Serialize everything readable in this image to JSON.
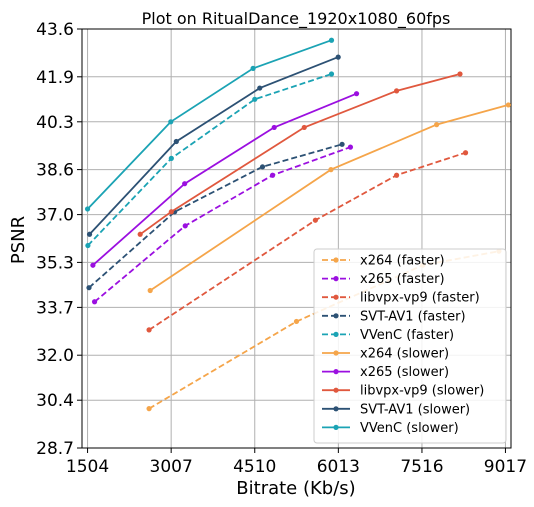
{
  "chart_data": {
    "type": "line",
    "title": "Plot on RitualDance_1920x1080_60fps",
    "xlabel": "Bitrate (Kb/s)",
    "ylabel": "PSNR",
    "xlim": [
      1404,
      9117
    ],
    "ylim": [
      28.7,
      43.6
    ],
    "xticks": [
      1504,
      3007,
      4510,
      6013,
      7516,
      9017
    ],
    "xtick_labels": [
      "1504",
      "3007",
      "4510",
      "6013",
      "7516",
      "9017"
    ],
    "yticks": [
      28.7,
      30.4,
      32.0,
      33.7,
      35.3,
      37.0,
      38.6,
      40.3,
      41.9,
      43.6
    ],
    "ytick_labels": [
      "28.7",
      "30.4",
      "32.0",
      "33.7",
      "35.3",
      "37.0",
      "38.6",
      "40.3",
      "41.9",
      "43.6"
    ],
    "grid": true,
    "legend_position": "lower-right",
    "series": [
      {
        "name": "x264 (faster)",
        "color": "#f5a54a",
        "dash": true,
        "x": [
          2610,
          5260,
          7530,
          8900
        ],
        "y": [
          30.1,
          33.2,
          35.2,
          35.7
        ]
      },
      {
        "name": "x265 (faster)",
        "color": "#9b0fe0",
        "dash": true,
        "x": [
          1630,
          3260,
          4830,
          6230
        ],
        "y": [
          33.9,
          36.6,
          38.4,
          39.4
        ]
      },
      {
        "name": "libvpx-vp9 (faster)",
        "color": "#e0583e",
        "dash": true,
        "x": [
          2610,
          5600,
          7060,
          8300
        ],
        "y": [
          32.9,
          36.8,
          38.4,
          39.2
        ]
      },
      {
        "name": "SVT-AV1 (faster)",
        "color": "#2c5174",
        "dash": true,
        "x": [
          1530,
          3070,
          4650,
          6080
        ],
        "y": [
          34.4,
          37.1,
          38.7,
          39.5
        ]
      },
      {
        "name": "VVenC (faster)",
        "color": "#1ba3b4",
        "dash": true,
        "x": [
          1510,
          3010,
          4510,
          5890
        ],
        "y": [
          35.9,
          39.0,
          41.1,
          42.0
        ]
      },
      {
        "name": "x264 (slower)",
        "color": "#f5a54a",
        "dash": false,
        "x": [
          2630,
          5880,
          7780,
          9070
        ],
        "y": [
          34.3,
          38.6,
          40.2,
          40.9
        ]
      },
      {
        "name": "x265 (slower)",
        "color": "#9b0fe0",
        "dash": false,
        "x": [
          1600,
          3250,
          4860,
          6340
        ],
        "y": [
          35.2,
          38.1,
          40.1,
          41.3
        ]
      },
      {
        "name": "libvpx-vp9 (slower)",
        "color": "#e0583e",
        "dash": false,
        "x": [
          2450,
          3010,
          5400,
          7060,
          8200
        ],
        "y": [
          36.3,
          37.1,
          40.1,
          41.4,
          42.0
        ]
      },
      {
        "name": "SVT-AV1 (slower)",
        "color": "#2c5174",
        "dash": false,
        "x": [
          1540,
          3100,
          4600,
          6010
        ],
        "y": [
          36.3,
          39.6,
          41.5,
          42.6
        ]
      },
      {
        "name": "VVenC (slower)",
        "color": "#1ba3b4",
        "dash": false,
        "x": [
          1504,
          3000,
          4480,
          5890
        ],
        "y": [
          37.2,
          40.3,
          42.2,
          43.2
        ]
      }
    ]
  }
}
